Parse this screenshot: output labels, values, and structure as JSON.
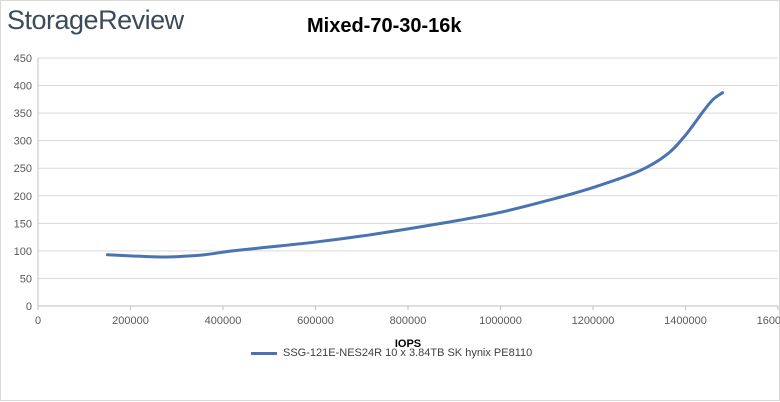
{
  "brand": {
    "logo_text": "StorageReview"
  },
  "chart_data": {
    "type": "line",
    "title": "Mixed-70-30-16k",
    "xlabel": "IOPS",
    "ylabel": "",
    "xlim": [
      0,
      1600000
    ],
    "ylim": [
      0,
      450
    ],
    "x_ticks": [
      0,
      200000,
      400000,
      600000,
      800000,
      1000000,
      1200000,
      1400000,
      1600000
    ],
    "y_ticks": [
      0,
      50,
      100,
      150,
      200,
      250,
      300,
      350,
      400,
      450
    ],
    "grid": "horizontal",
    "legend_position": "bottom",
    "series": [
      {
        "name": "SSG-121E-NES24R 10 x 3.84TB SK hynix PE8110",
        "color": "#4a73b2",
        "points": [
          [
            150000,
            93
          ],
          [
            200000,
            91
          ],
          [
            265000,
            89
          ],
          [
            310000,
            90
          ],
          [
            360000,
            93
          ],
          [
            420000,
            100
          ],
          [
            500000,
            107
          ],
          [
            600000,
            116
          ],
          [
            700000,
            127
          ],
          [
            800000,
            140
          ],
          [
            900000,
            154
          ],
          [
            1000000,
            170
          ],
          [
            1100000,
            191
          ],
          [
            1200000,
            215
          ],
          [
            1300000,
            245
          ],
          [
            1360000,
            275
          ],
          [
            1400000,
            310
          ],
          [
            1440000,
            355
          ],
          [
            1460000,
            375
          ],
          [
            1480000,
            387
          ]
        ]
      }
    ]
  }
}
